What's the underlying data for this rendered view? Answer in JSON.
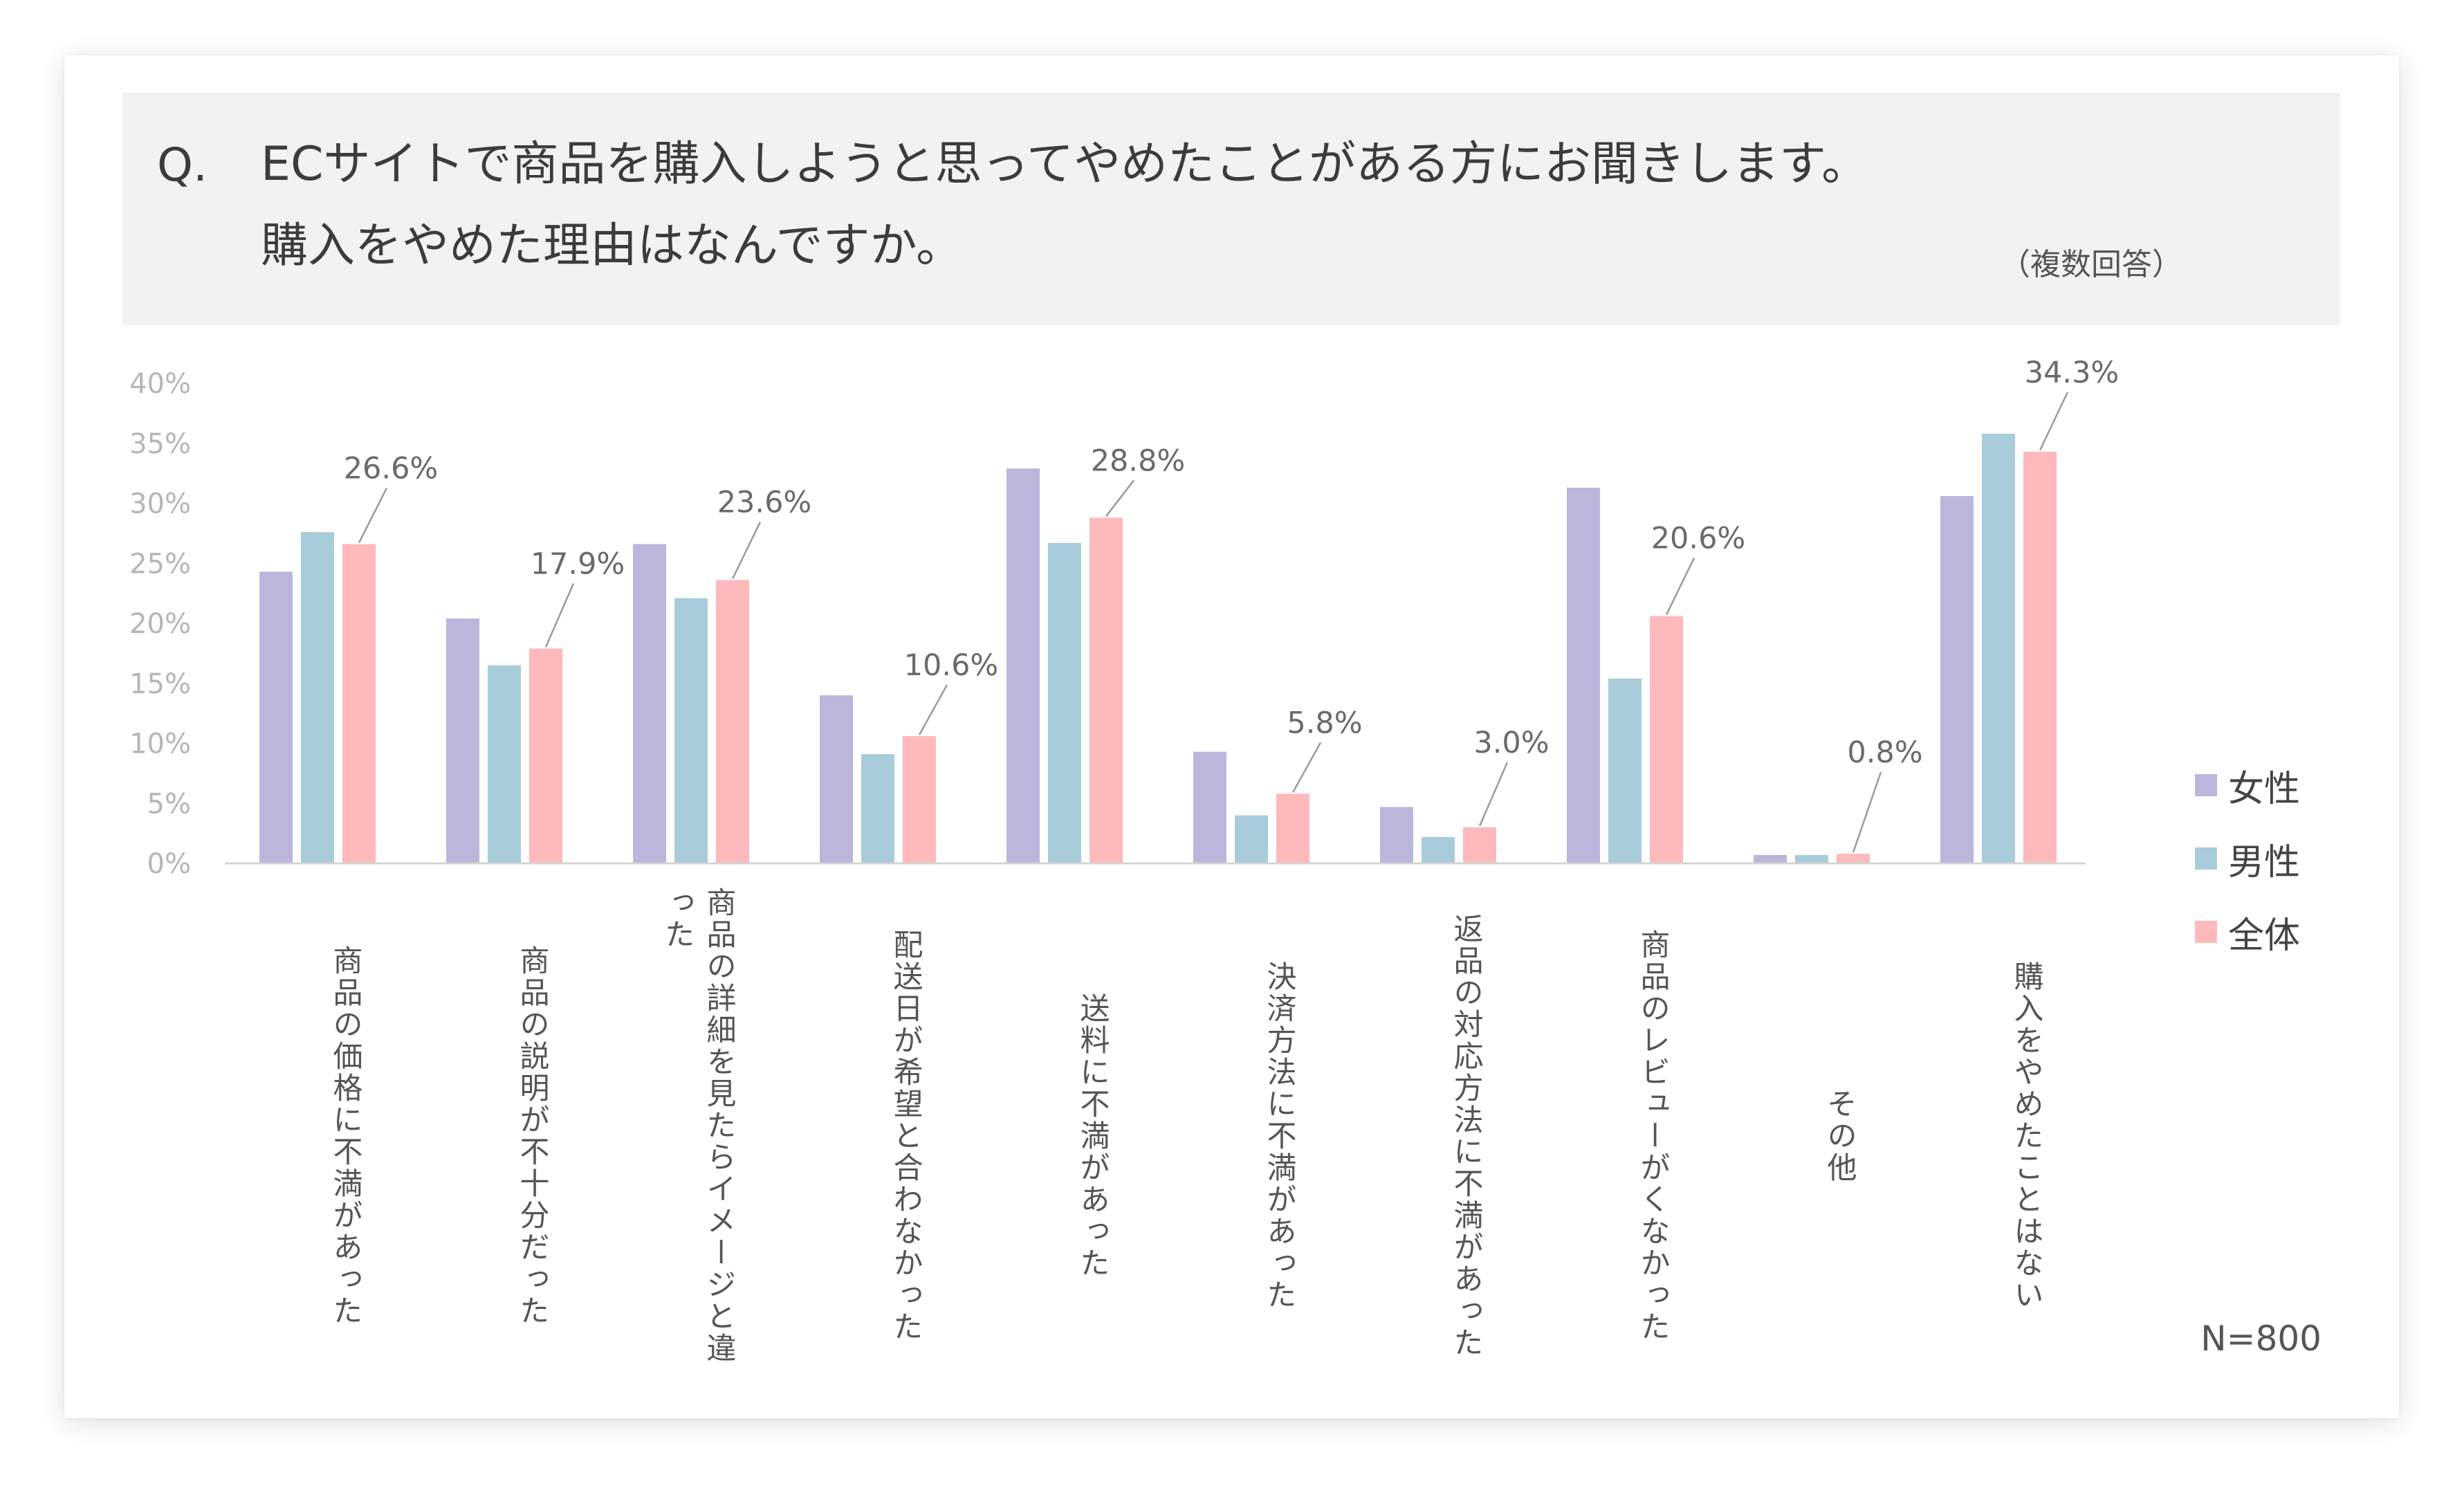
{
  "question": {
    "prefix": "Q.",
    "line1": "ECサイトで商品を購入しようと思ってやめたことがある方にお聞きします。",
    "line2": "購入をやめた理由はなんですか。",
    "note": "（複数回答）"
  },
  "sample_note": "N=800",
  "colors": {
    "female": "#bcb6dc",
    "male": "#a9ccdb",
    "total": "#fdb9bb"
  },
  "chart_data": {
    "type": "bar",
    "categories": [
      "商品の価格に不満があった",
      "商品の説明が不十分だった",
      "商品の詳細を見たらイメージと違った",
      "配送日が希望と合わなかった",
      "送料に不満があった",
      "決済方法に不満があった",
      "返品の対応方法に不満があった",
      "商品のレビューがくなかった",
      "その他",
      "購入をやめたことはない"
    ],
    "series": [
      {
        "name": "女性",
        "values": [
          24.3,
          20.4,
          26.6,
          14.0,
          32.9,
          9.3,
          4.7,
          31.3,
          0.7,
          30.6
        ]
      },
      {
        "name": "男性",
        "values": [
          27.6,
          16.5,
          22.1,
          9.1,
          26.7,
          4.0,
          2.2,
          15.4,
          0.7,
          35.8
        ]
      },
      {
        "name": "全体",
        "values": [
          26.6,
          17.9,
          23.6,
          10.6,
          28.8,
          5.8,
          3.0,
          20.6,
          0.8,
          34.3
        ]
      }
    ],
    "data_labels": [
      "26.6%",
      "17.9%",
      "23.6%",
      "10.6%",
      "28.8%",
      "5.8%",
      "3.0%",
      "20.6%",
      "0.8%",
      "34.3%"
    ],
    "yticks": [
      "0%",
      "5%",
      "10%",
      "15%",
      "20%",
      "25%",
      "30%",
      "35%",
      "40%"
    ],
    "ylim": [
      0,
      40
    ],
    "grid": false,
    "legend_position": "right"
  }
}
